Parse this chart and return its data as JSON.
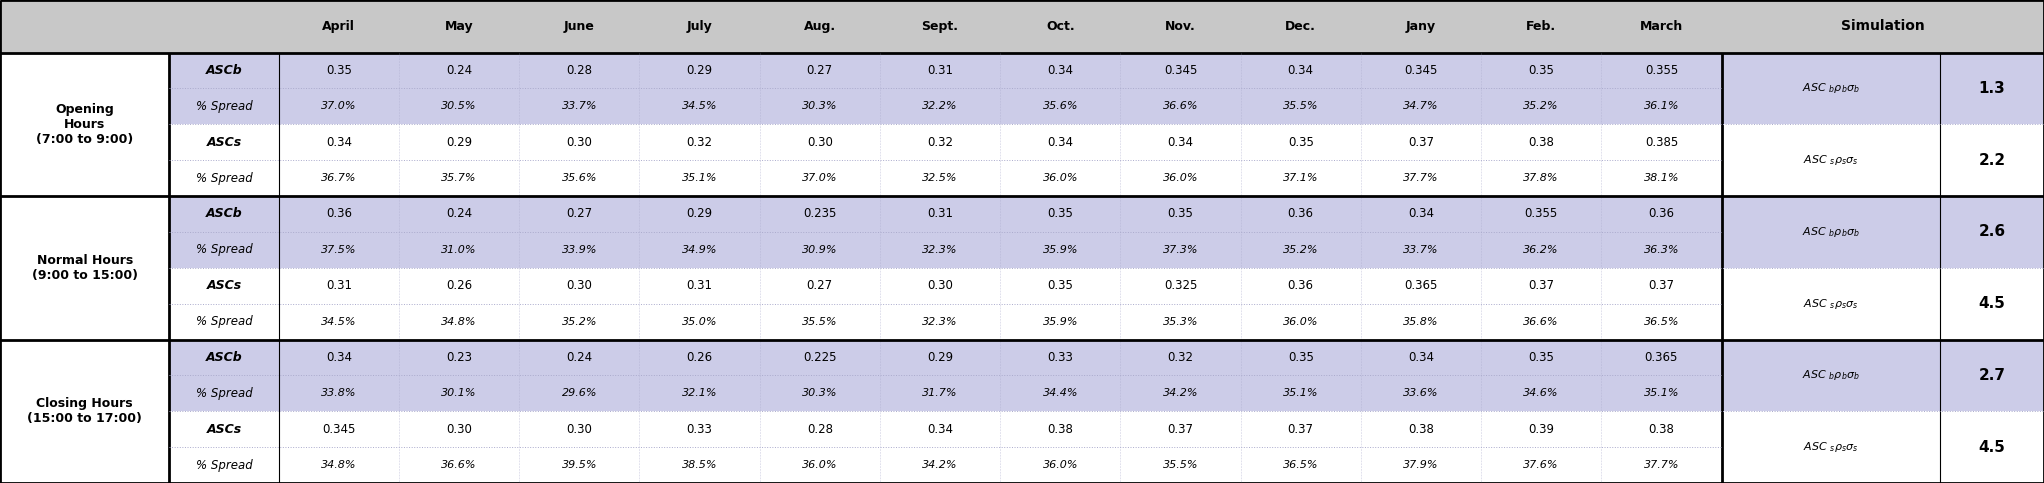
{
  "col_headers": [
    "April",
    "May",
    "June",
    "July",
    "Aug.",
    "Sept.",
    "Oct.",
    "Nov.",
    "Dec.",
    "Jany",
    "Feb.",
    "March"
  ],
  "sim_header": "Simulation",
  "row_groups": [
    {
      "group_label": "Opening\nHours\n(7:00 to 9:00)",
      "sub_rows": [
        {
          "label": "ASCb",
          "is_b": true,
          "row1": [
            "0.35",
            "0.24",
            "0.28",
            "0.29",
            "0.27",
            "0.31",
            "0.34",
            "0.345",
            "0.34",
            "0.345",
            "0.35",
            "0.355"
          ],
          "row2": [
            "37.0%",
            "30.5%",
            "33.7%",
            "34.5%",
            "30.3%",
            "32.2%",
            "35.6%",
            "36.6%",
            "35.5%",
            "34.7%",
            "35.2%",
            "36.1%"
          ],
          "bg": "#cccce8",
          "sim_value": "1.3"
        },
        {
          "label": "ASCs",
          "is_b": false,
          "row1": [
            "0.34",
            "0.29",
            "0.30",
            "0.32",
            "0.30",
            "0.32",
            "0.34",
            "0.34",
            "0.35",
            "0.37",
            "0.38",
            "0.385"
          ],
          "row2": [
            "36.7%",
            "35.7%",
            "35.6%",
            "35.1%",
            "37.0%",
            "32.5%",
            "36.0%",
            "36.0%",
            "37.1%",
            "37.7%",
            "37.8%",
            "38.1%"
          ],
          "bg": "#ffffff",
          "sim_value": "2.2"
        }
      ]
    },
    {
      "group_label": "Normal Hours\n(9:00 to 15:00)",
      "sub_rows": [
        {
          "label": "ASCb",
          "is_b": true,
          "row1": [
            "0.36",
            "0.24",
            "0.27",
            "0.29",
            "0.235",
            "0.31",
            "0.35",
            "0.35",
            "0.36",
            "0.34",
            "0.355",
            "0.36"
          ],
          "row2": [
            "37.5%",
            "31.0%",
            "33.9%",
            "34.9%",
            "30.9%",
            "32.3%",
            "35.9%",
            "37.3%",
            "35.2%",
            "33.7%",
            "36.2%",
            "36.3%"
          ],
          "bg": "#cccce8",
          "sim_value": "2.6"
        },
        {
          "label": "ASCs",
          "is_b": false,
          "row1": [
            "0.31",
            "0.26",
            "0.30",
            "0.31",
            "0.27",
            "0.30",
            "0.35",
            "0.325",
            "0.36",
            "0.365",
            "0.37",
            "0.37"
          ],
          "row2": [
            "34.5%",
            "34.8%",
            "35.2%",
            "35.0%",
            "35.5%",
            "32.3%",
            "35.9%",
            "35.3%",
            "36.0%",
            "35.8%",
            "36.6%",
            "36.5%"
          ],
          "bg": "#ffffff",
          "sim_value": "4.5"
        }
      ]
    },
    {
      "group_label": "Closing Hours\n(15:00 to 17:00)",
      "sub_rows": [
        {
          "label": "ASCb",
          "is_b": true,
          "row1": [
            "0.34",
            "0.23",
            "0.24",
            "0.26",
            "0.225",
            "0.29",
            "0.33",
            "0.32",
            "0.35",
            "0.34",
            "0.35",
            "0.365"
          ],
          "row2": [
            "33.8%",
            "30.1%",
            "29.6%",
            "32.1%",
            "30.3%",
            "31.7%",
            "34.4%",
            "34.2%",
            "35.1%",
            "33.6%",
            "34.6%",
            "35.1%"
          ],
          "bg": "#cccce8",
          "sim_value": "2.7"
        },
        {
          "label": "ASCs",
          "is_b": false,
          "row1": [
            "0.345",
            "0.30",
            "0.30",
            "0.33",
            "0.28",
            "0.34",
            "0.38",
            "0.37",
            "0.37",
            "0.38",
            "0.39",
            "0.38"
          ],
          "row2": [
            "34.8%",
            "36.6%",
            "39.5%",
            "38.5%",
            "36.0%",
            "34.2%",
            "36.0%",
            "35.5%",
            "36.5%",
            "37.9%",
            "37.6%",
            "37.7%"
          ],
          "bg": "#ffffff",
          "sim_value": "4.5"
        }
      ]
    }
  ],
  "header_bg": "#c8c8c8",
  "blue_bg": "#cccce8",
  "white_bg": "#ffffff",
  "thick_lw": 2.0,
  "thin_lw": 0.8,
  "dot_lw": 0.7,
  "dot_color": "#aaaacc"
}
